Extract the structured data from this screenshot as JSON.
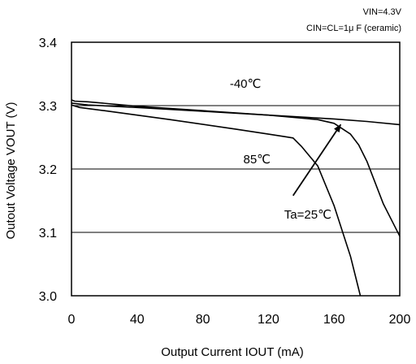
{
  "chart_data": {
    "type": "line",
    "conditions": [
      "VIN=4.3V",
      "CIN=CL=1μ F (ceramic)"
    ],
    "xlabel": "Output Current  IOUT  (mA)",
    "ylabel": "Outout Voltage  VOUT  (V)",
    "xlim": [
      0,
      200
    ],
    "ylim": [
      3.0,
      3.4
    ],
    "xticks": [
      0,
      40,
      80,
      120,
      160,
      200
    ],
    "yticks": [
      3.0,
      3.1,
      3.2,
      3.3,
      3.4
    ],
    "ytick_labels": [
      "3.0",
      "3.1",
      "3.2",
      "3.3",
      "3.4"
    ],
    "grid": true,
    "series": [
      {
        "name": "-40℃",
        "x": [
          0,
          2,
          10,
          40,
          80,
          120,
          150,
          160,
          170,
          175,
          180,
          190,
          200
        ],
        "y": [
          3.309,
          3.307,
          3.306,
          3.299,
          3.292,
          3.285,
          3.278,
          3.272,
          3.255,
          3.238,
          3.212,
          3.145,
          3.094
        ]
      },
      {
        "name": "Ta=25℃",
        "x": [
          0,
          10,
          40,
          80,
          120,
          160,
          180,
          200
        ],
        "y": [
          3.304,
          3.301,
          3.297,
          3.291,
          3.285,
          3.279,
          3.275,
          3.27
        ]
      },
      {
        "name": "85℃",
        "x": [
          0,
          5,
          20,
          60,
          100,
          120,
          130,
          135,
          140,
          150,
          160,
          170,
          176
        ],
        "y": [
          3.301,
          3.297,
          3.292,
          3.278,
          3.263,
          3.255,
          3.251,
          3.249,
          3.236,
          3.205,
          3.142,
          3.062,
          3.0
        ]
      }
    ],
    "annotations": [
      {
        "text": "-40℃",
        "x": 106,
        "y": 3.328
      },
      {
        "text": "85℃",
        "x": 113,
        "y": 3.209
      },
      {
        "text": "Ta=25℃",
        "x": 144,
        "y": 3.122
      }
    ],
    "arrow": {
      "from": [
        135,
        3.158
      ],
      "to": [
        164,
        3.27
      ]
    }
  }
}
